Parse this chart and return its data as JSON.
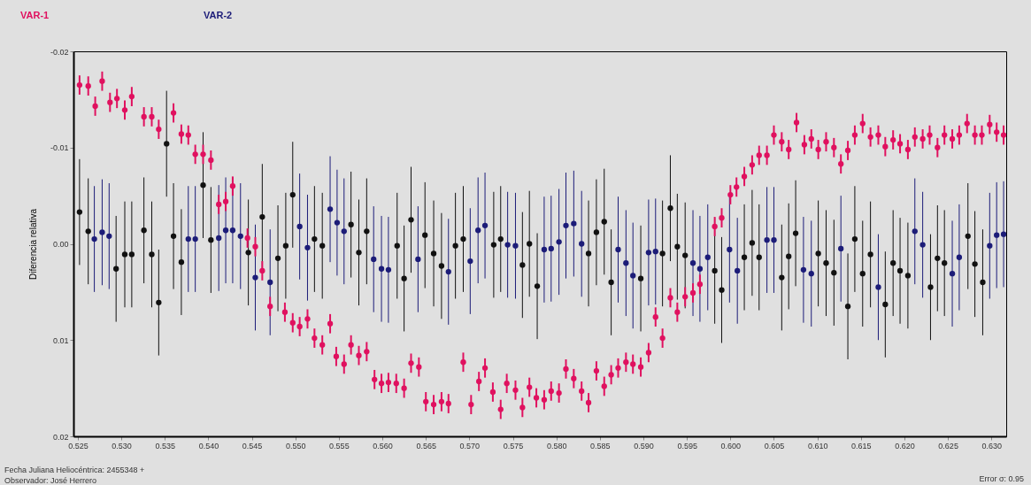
{
  "chart_data": {
    "type": "scatter",
    "ylabel": "Diferencia relativa",
    "xlim": [
      0.5245,
      0.6317
    ],
    "ylim": [
      0.02,
      -0.02
    ],
    "xticks": [
      0.525,
      {
        "value": 0.53,
        "label": "0.530"
      },
      0.535,
      {
        "value": 0.54,
        "label": "0.540"
      },
      0.545,
      {
        "value": 0.55,
        "label": "0.550"
      },
      0.555,
      {
        "value": 0.56,
        "label": "0.560"
      },
      0.565,
      {
        "value": 0.57,
        "label": "0.570"
      },
      0.575,
      {
        "value": 0.58,
        "label": "0.580"
      },
      0.585,
      {
        "value": 0.59,
        "label": "0.590"
      },
      0.595,
      {
        "value": 0.6,
        "label": "0.600"
      },
      0.605,
      {
        "value": 0.61,
        "label": "0.610"
      },
      0.615,
      {
        "value": 0.62,
        "label": "0.620"
      },
      0.625,
      {
        "value": 0.63,
        "label": "0.630"
      }
    ],
    "yticks": [
      -0.02,
      -0.01,
      {
        "value": 0,
        "label": "0.00"
      },
      0.01,
      0.02
    ],
    "marker": "circle",
    "annotations": [
      "Fecha Juliana Heliocéntrica: 2455348 +",
      "Observador: José Herrero",
      "Error σ: 0.95"
    ],
    "series": [
      {
        "name": "VAR-1",
        "color": "#e0115f",
        "x": [
          0.5252,
          0.5262,
          0.527,
          0.5278,
          0.5287,
          0.5295,
          0.5304,
          0.5312,
          0.5326,
          0.5335,
          0.5343,
          0.536,
          0.5369,
          0.5377,
          0.5385,
          0.5394,
          0.5403,
          0.5412,
          0.542,
          0.5428,
          0.5445,
          0.5454,
          0.5462,
          0.5471,
          0.5488,
          0.5497,
          0.5505,
          0.5514,
          0.5522,
          0.5531,
          0.554,
          0.5547,
          0.5556,
          0.5564,
          0.5573,
          0.5582,
          0.5591,
          0.5599,
          0.5607,
          0.5616,
          0.5625,
          0.5633,
          0.5642,
          0.565,
          0.5659,
          0.5668,
          0.5676,
          0.5693,
          0.5702,
          0.5711,
          0.5718,
          0.5727,
          0.5736,
          0.5743,
          0.5753,
          0.5761,
          0.5769,
          0.5777,
          0.5786,
          0.5794,
          0.5803,
          0.5811,
          0.582,
          0.5829,
          0.5837,
          0.5846,
          0.5855,
          0.5863,
          0.5871,
          0.588,
          0.5888,
          0.5897,
          0.5906,
          0.5914,
          0.5922,
          0.5931,
          0.5939,
          0.5948,
          0.5957,
          0.5965,
          0.5982,
          0.599,
          0.6,
          0.6007,
          0.6016,
          0.6025,
          0.6033,
          0.6042,
          0.605,
          0.6059,
          0.6067,
          0.6076,
          0.6085,
          0.6093,
          0.6101,
          0.611,
          0.6119,
          0.6127,
          0.6135,
          0.6143,
          0.6152,
          0.6161,
          0.617,
          0.6178,
          0.6187,
          0.6195,
          0.6204,
          0.6212,
          0.6221,
          0.6229,
          0.6238,
          0.6246,
          0.6255,
          0.6263,
          0.6272,
          0.6281,
          0.6289,
          0.6298,
          0.6306,
          0.6314
        ],
        "values": [
          -0.0165,
          -0.0164,
          -0.0143,
          -0.0169,
          -0.0147,
          -0.0151,
          -0.0139,
          -0.0153,
          -0.0132,
          -0.0132,
          -0.0119,
          -0.0136,
          -0.0114,
          -0.0113,
          -0.0093,
          -0.0093,
          -0.0087,
          -0.0041,
          -0.0044,
          -0.006,
          -0.0006,
          0.0003,
          0.0028,
          0.0065,
          0.0071,
          0.0082,
          0.0086,
          0.0078,
          0.0098,
          0.0105,
          0.0083,
          0.0117,
          0.0125,
          0.0105,
          0.0116,
          0.0112,
          0.0141,
          0.0145,
          0.0144,
          0.0145,
          0.015,
          0.0124,
          0.0128,
          0.0164,
          0.0167,
          0.0164,
          0.0166,
          0.0123,
          0.0167,
          0.0143,
          0.0129,
          0.0154,
          0.0172,
          0.0145,
          0.0152,
          0.017,
          0.0149,
          0.016,
          0.0162,
          0.0153,
          0.0155,
          0.013,
          0.014,
          0.0153,
          0.0165,
          0.0132,
          0.0148,
          0.0136,
          0.0129,
          0.0123,
          0.0125,
          0.0128,
          0.0113,
          0.0076,
          0.0098,
          0.0056,
          0.0071,
          0.0055,
          0.0051,
          0.0042,
          -0.0018,
          -0.0027,
          -0.0051,
          -0.0059,
          -0.007,
          -0.0082,
          -0.0092,
          -0.0092,
          -0.0113,
          -0.0106,
          -0.0098,
          -0.0126,
          -0.0103,
          -0.0109,
          -0.0098,
          -0.0106,
          -0.01,
          -0.0083,
          -0.0097,
          -0.0113,
          -0.0125,
          -0.0111,
          -0.0113,
          -0.0101,
          -0.0108,
          -0.0104,
          -0.0098,
          -0.0111,
          -0.0109,
          -0.0113,
          -0.01,
          -0.0113,
          -0.0109,
          -0.0113,
          -0.0125,
          -0.0113,
          -0.0113,
          -0.0124,
          -0.0116,
          -0.0113
        ],
        "errors": [
          0.001,
          0.001,
          0.001,
          0.001,
          0.001,
          0.001,
          0.001,
          0.001,
          0.001,
          0.001,
          0.001,
          0.001,
          0.001,
          0.001,
          0.001,
          0.001,
          0.001,
          0.001,
          0.001,
          0.001,
          0.001,
          0.001,
          0.001,
          0.001,
          0.001,
          0.001,
          0.001,
          0.001,
          0.001,
          0.001,
          0.001,
          0.001,
          0.001,
          0.001,
          0.001,
          0.001,
          0.001,
          0.001,
          0.001,
          0.001,
          0.001,
          0.001,
          0.001,
          0.001,
          0.001,
          0.001,
          0.001,
          0.001,
          0.001,
          0.001,
          0.001,
          0.001,
          0.001,
          0.001,
          0.001,
          0.001,
          0.001,
          0.001,
          0.001,
          0.001,
          0.001,
          0.001,
          0.001,
          0.001,
          0.001,
          0.001,
          0.001,
          0.001,
          0.001,
          0.001,
          0.001,
          0.001,
          0.001,
          0.001,
          0.001,
          0.001,
          0.001,
          0.001,
          0.001,
          0.001,
          0.001,
          0.001,
          0.001,
          0.001,
          0.001,
          0.001,
          0.001,
          0.001,
          0.001,
          0.001,
          0.001,
          0.001,
          0.001,
          0.001,
          0.001,
          0.001,
          0.001,
          0.001,
          0.001,
          0.001,
          0.001,
          0.001,
          0.001,
          0.001,
          0.001,
          0.001,
          0.001,
          0.001,
          0.001,
          0.001,
          0.001,
          0.001,
          0.001,
          0.001,
          0.001,
          0.001,
          0.001,
          0.001,
          0.001,
          0.001
        ]
      },
      {
        "name": "VAR-2",
        "color": "#1c1c78",
        "x": [
          0.5269,
          0.5278,
          0.5286,
          0.5377,
          0.5385,
          0.5412,
          0.542,
          0.5428,
          0.5437,
          0.5454,
          0.5471,
          0.5505,
          0.5514,
          0.554,
          0.5548,
          0.5556,
          0.559,
          0.5599,
          0.5607,
          0.5641,
          0.5676,
          0.5701,
          0.571,
          0.5718,
          0.5744,
          0.5753,
          0.5786,
          0.5794,
          0.5803,
          0.5811,
          0.582,
          0.5829,
          0.5871,
          0.588,
          0.5888,
          0.5906,
          0.5914,
          0.5957,
          0.5965,
          0.5974,
          0.5999,
          0.6008,
          0.6042,
          0.605,
          0.6084,
          0.6093,
          0.6127,
          0.617,
          0.6212,
          0.6221,
          0.6255,
          0.6263,
          0.6298,
          0.6306,
          0.6314
        ],
        "values": [
          -0.0005,
          -0.0012,
          -0.0008,
          -0.0005,
          -0.0005,
          -0.0006,
          -0.0014,
          -0.0014,
          -0.0008,
          0.0035,
          0.004,
          -0.0018,
          0.0004,
          -0.0036,
          -0.0022,
          -0.0013,
          0.0016,
          0.0026,
          0.0027,
          0.0016,
          0.0029,
          0.0018,
          -0.0014,
          -0.0019,
          0.0001,
          0.0002,
          0.0006,
          0.0005,
          -0.0002,
          -0.0019,
          -0.0021,
          0,
          0.0006,
          0.002,
          0.0033,
          0.0009,
          0.0008,
          0.002,
          0.0026,
          0.0014,
          0.0006,
          0.0028,
          -0.0004,
          -0.0004,
          0.0027,
          0.0031,
          0.0005,
          0.0045,
          -0.0013,
          0.0001,
          0.0031,
          0.0014,
          0.0002,
          -0.0009,
          -0.001
        ],
        "errors": [
          0.0055,
          0.0055,
          0.0055,
          0.0055,
          0.0055,
          0.0055,
          0.0055,
          0.0055,
          0.0055,
          0.0055,
          0.0055,
          0.0055,
          0.0055,
          0.0055,
          0.0055,
          0.0055,
          0.0055,
          0.0055,
          0.0055,
          0.0055,
          0.0055,
          0.0055,
          0.0055,
          0.0055,
          0.0055,
          0.0055,
          0.0055,
          0.0055,
          0.0055,
          0.0055,
          0.0055,
          0.0055,
          0.0055,
          0.0055,
          0.0055,
          0.0055,
          0.0055,
          0.0055,
          0.0055,
          0.0055,
          0.0055,
          0.0055,
          0.0055,
          0.0055,
          0.0055,
          0.0055,
          0.0055,
          0.0055,
          0.0055,
          0.0055,
          0.0055,
          0.0055,
          0.0055,
          0.0055,
          0.0055
        ]
      },
      {
        "color": "#111111",
        "x": [
          0.5252,
          0.5262,
          0.5294,
          0.5304,
          0.5312,
          0.5326,
          0.5335,
          0.5343,
          0.5352,
          0.536,
          0.5369,
          0.5394,
          0.5403,
          0.5446,
          0.5462,
          0.548,
          0.5489,
          0.5497,
          0.5522,
          0.5531,
          0.5564,
          0.5573,
          0.5582,
          0.5617,
          0.5625,
          0.5633,
          0.5649,
          0.5659,
          0.5668,
          0.5684,
          0.5693,
          0.5728,
          0.5736,
          0.5761,
          0.5769,
          0.5778,
          0.5837,
          0.5846,
          0.5855,
          0.5863,
          0.5897,
          0.5922,
          0.5931,
          0.5939,
          0.5948,
          0.5982,
          0.599,
          0.6016,
          0.6025,
          0.6033,
          0.6059,
          0.6067,
          0.6075,
          0.6101,
          0.611,
          0.6119,
          0.6135,
          0.6143,
          0.6152,
          0.6161,
          0.6178,
          0.6187,
          0.6195,
          0.6204,
          0.623,
          0.6238,
          0.6246,
          0.6273,
          0.6281,
          0.629
        ],
        "values": [
          -0.0033,
          -0.0013,
          0.0026,
          0.0011,
          0.0011,
          -0.0014,
          0.0011,
          0.0061,
          -0.0104,
          -0.0008,
          0.0019,
          -0.0061,
          -0.0004,
          0.0009,
          -0.0028,
          0.0015,
          0.0002,
          -0.0051,
          -0.0005,
          0.0002,
          -0.002,
          0.0009,
          -0.0013,
          0.0002,
          0.0036,
          -0.0025,
          -0.0009,
          0.001,
          0.0023,
          0.0002,
          -0.0005,
          0.0001,
          -0.0005,
          0.0022,
          0,
          0.0044,
          0.001,
          -0.0012,
          -0.0023,
          0.004,
          0.0036,
          0.001,
          -0.0037,
          0.0003,
          0.0012,
          0.0028,
          0.0048,
          0.0014,
          -0.0001,
          0.0014,
          0.0035,
          0.0013,
          -0.0011,
          0.001,
          0.002,
          0.003,
          0.0065,
          -0.0005,
          0.0031,
          0.0011,
          0.0063,
          0.002,
          0.0028,
          0.0033,
          0.0045,
          0.0015,
          0.002,
          -0.0008,
          0.0021,
          0.004
        ],
        "errors": [
          0.0055,
          0.0055,
          0.0055,
          0.0055,
          0.0055,
          0.0055,
          0.0055,
          0.0055,
          0.0055,
          0.0055,
          0.0055,
          0.0055,
          0.0055,
          0.0055,
          0.0055,
          0.0055,
          0.0055,
          0.0055,
          0.0055,
          0.0055,
          0.0055,
          0.0055,
          0.0055,
          0.0055,
          0.0055,
          0.0055,
          0.0055,
          0.0055,
          0.0055,
          0.0055,
          0.0055,
          0.0055,
          0.0055,
          0.0055,
          0.0055,
          0.0055,
          0.0055,
          0.0055,
          0.0055,
          0.0055,
          0.0055,
          0.0055,
          0.0055,
          0.0055,
          0.0055,
          0.0055,
          0.0055,
          0.0055,
          0.0055,
          0.0055,
          0.0055,
          0.0055,
          0.0055,
          0.0055,
          0.0055,
          0.0055,
          0.0055,
          0.0055,
          0.0055,
          0.0055,
          0.0055,
          0.0055,
          0.0055,
          0.0055,
          0.0055,
          0.0055,
          0.0055,
          0.0055,
          0.0055,
          0.0055
        ]
      }
    ]
  }
}
